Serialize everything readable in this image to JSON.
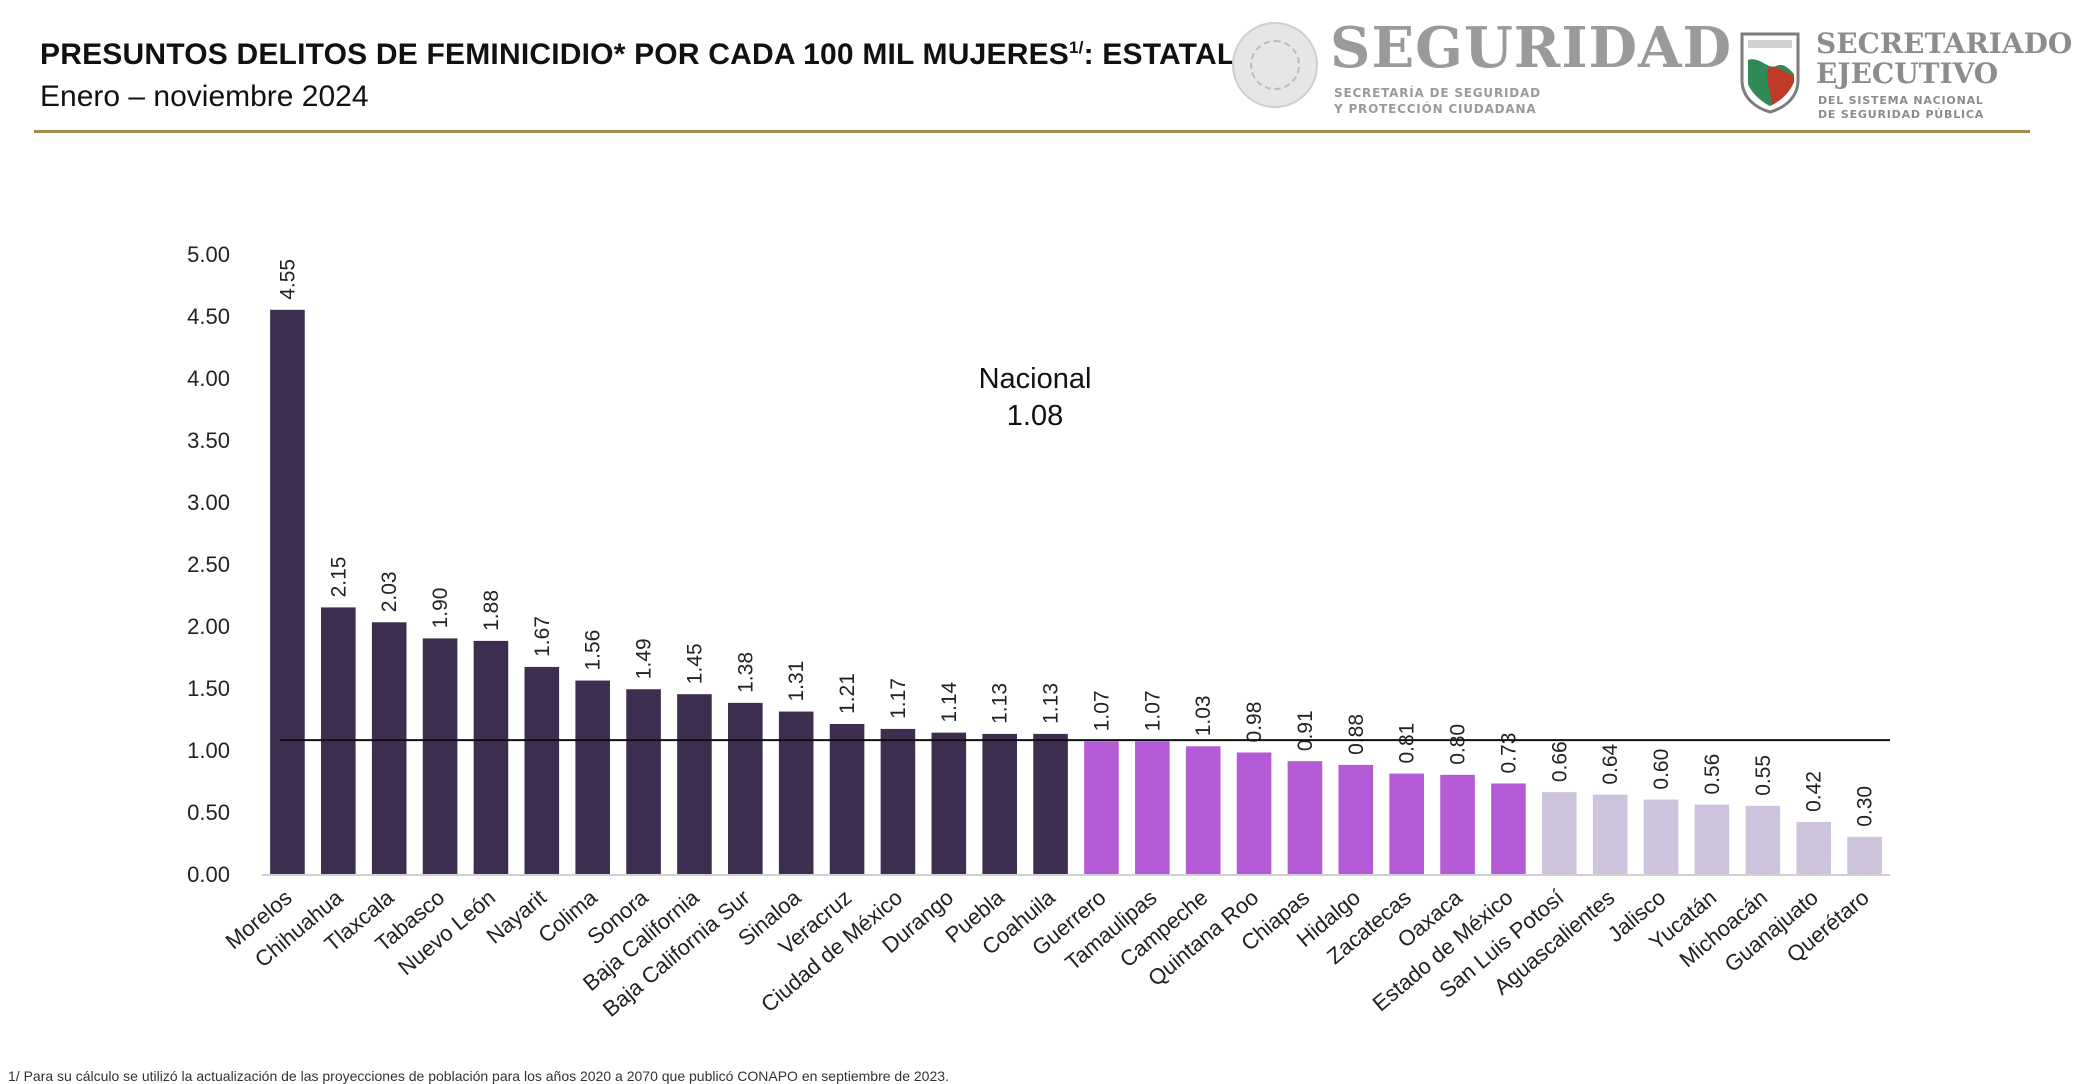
{
  "header": {
    "title": "PRESUNTOS DELITOS DE FEMINICIDIO* POR CADA 100 MIL MUJERES",
    "title_sup": "1/",
    "title_suffix": ": ESTATAL",
    "subtitle": "Enero – noviembre 2024"
  },
  "logos": {
    "seguridad": {
      "word": "SEGURIDAD",
      "line1": "SECRETARÍA DE SEGURIDAD",
      "line2": "Y PROTECCIÓN CIUDADANA",
      "seal_icon": "mexico-coat-of-arms-seal"
    },
    "secretariado": {
      "line1": "SECRETARIADO",
      "line2": "EJECUTIVO",
      "sub1": "DEL SISTEMA NACIONAL",
      "sub2": "DE SEGURIDAD PÚBLICA",
      "shield_icon": "secretariado-shield"
    }
  },
  "chart_data": {
    "type": "bar",
    "title": "PRESUNTOS DELITOS DE FEMINICIDIO* POR CADA 100 MIL MUJERES1/: ESTATAL",
    "subtitle": "Enero – noviembre 2024",
    "xlabel": "",
    "ylabel": "",
    "ylim": [
      0,
      5
    ],
    "yticks": [
      "0.00",
      "0.50",
      "1.00",
      "1.50",
      "2.00",
      "2.50",
      "3.00",
      "3.50",
      "4.00",
      "4.50",
      "5.00"
    ],
    "grid": false,
    "categories": [
      "Morelos",
      "Chihuahua",
      "Tlaxcala",
      "Tabasco",
      "Nuevo León",
      "Nayarit",
      "Colima",
      "Sonora",
      "Baja California",
      "Baja California Sur",
      "Sinaloa",
      "Veracruz",
      "Ciudad de México",
      "Durango",
      "Puebla",
      "Coahuila",
      "Guerrero",
      "Tamaulipas",
      "Campeche",
      "Quintana Roo",
      "Chiapas",
      "Hidalgo",
      "Zacatecas",
      "Oaxaca",
      "Estado de México",
      "San Luis Potosí",
      "Aguascalientes",
      "Jalisco",
      "Yucatán",
      "Michoacán",
      "Guanajuato",
      "Querétaro"
    ],
    "values": [
      4.55,
      2.15,
      2.03,
      1.9,
      1.88,
      1.67,
      1.56,
      1.49,
      1.45,
      1.38,
      1.31,
      1.21,
      1.17,
      1.14,
      1.13,
      1.13,
      1.07,
      1.07,
      1.03,
      0.98,
      0.91,
      0.88,
      0.81,
      0.8,
      0.73,
      0.66,
      0.64,
      0.6,
      0.56,
      0.55,
      0.42,
      0.3
    ],
    "value_labels": [
      "4.55",
      "2.15",
      "2.03",
      "1.90",
      "1.88",
      "1.67",
      "1.56",
      "1.49",
      "1.45",
      "1.38",
      "1.31",
      "1.21",
      "1.17",
      "1.14",
      "1.13",
      "1.13",
      "1.07",
      "1.07",
      "1.03",
      "0.98",
      "0.91",
      "0.88",
      "0.81",
      "0.80",
      "0.73",
      "0.66",
      "0.64",
      "0.60",
      "0.56",
      "0.55",
      "0.42",
      "0.30"
    ],
    "bar_colors": [
      "#3d2e4f",
      "#3d2e4f",
      "#3d2e4f",
      "#3d2e4f",
      "#3d2e4f",
      "#3d2e4f",
      "#3d2e4f",
      "#3d2e4f",
      "#3d2e4f",
      "#3d2e4f",
      "#3d2e4f",
      "#3d2e4f",
      "#3d2e4f",
      "#3d2e4f",
      "#3d2e4f",
      "#3d2e4f",
      "#b55ad6",
      "#b55ad6",
      "#b55ad6",
      "#b55ad6",
      "#b55ad6",
      "#b55ad6",
      "#b55ad6",
      "#b55ad6",
      "#b55ad6",
      "#cdc3dd",
      "#cdc3dd",
      "#cdc3dd",
      "#cdc3dd",
      "#cdc3dd",
      "#cdc3dd",
      "#cdc3dd"
    ],
    "reference_line": {
      "label": "Nacional",
      "value": 1.08,
      "value_label": "1.08",
      "color": "#111111"
    }
  },
  "footnote": "1/ Para su cálculo se utilizó la actualización de las proyecciones de población para los años 2020 a 2070 que publicó CONAPO en septiembre de 2023."
}
